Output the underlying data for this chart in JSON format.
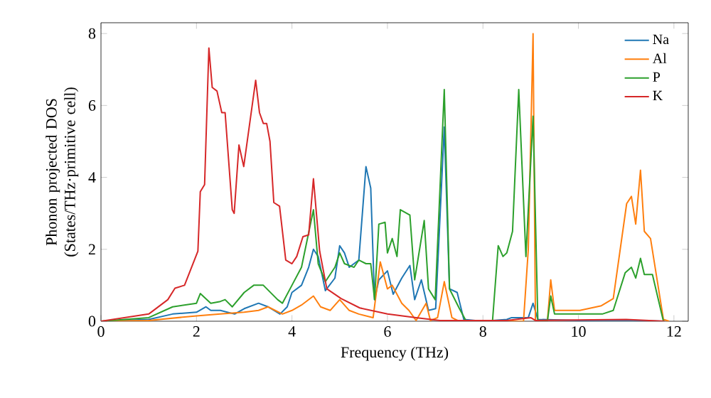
{
  "chart_data": {
    "type": "line",
    "xlabel": "Frequency (THz)",
    "ylabel": "Phonon projected DOS (States/THz·primitive cell)",
    "xlim": [
      0,
      12.3
    ],
    "ylim": [
      0,
      8.3
    ],
    "xticks": [
      0,
      2,
      4,
      6,
      8,
      10,
      12
    ],
    "yticks": [
      0,
      2,
      4,
      6,
      8
    ],
    "legend": "top right",
    "grid": false,
    "series": [
      {
        "name": "Na",
        "color": "#1f77b4",
        "x": [
          0,
          1,
          1.5,
          2,
          2.2,
          2.3,
          2.5,
          2.8,
          3.0,
          3.3,
          3.5,
          3.75,
          3.9,
          4.0,
          4.2,
          4.35,
          4.45,
          4.55,
          4.7,
          4.9,
          5.0,
          5.1,
          5.2,
          5.3,
          5.4,
          5.55,
          5.65,
          5.73,
          5.82,
          6.0,
          6.12,
          6.3,
          6.47,
          6.57,
          6.71,
          6.86,
          7.01,
          7.19,
          7.3,
          7.46,
          7.6,
          8.0,
          8.5,
          8.6,
          8.95,
          9.05,
          9.15,
          10,
          11,
          11.8
        ],
        "values": [
          0,
          0.05,
          0.2,
          0.25,
          0.4,
          0.3,
          0.3,
          0.2,
          0.35,
          0.5,
          0.4,
          0.2,
          0.4,
          0.8,
          1.0,
          1.5,
          2.0,
          1.8,
          0.85,
          1.2,
          2.1,
          1.9,
          1.5,
          1.6,
          1.7,
          4.3,
          3.7,
          0.6,
          1.15,
          1.4,
          0.75,
          1.2,
          1.55,
          0.6,
          1.15,
          0.3,
          0.35,
          5.4,
          0.9,
          0.8,
          0.05,
          0,
          0.05,
          0.1,
          0.1,
          0.5,
          0.05,
          0.02,
          0.03,
          0
        ]
      },
      {
        "name": "Al",
        "color": "#ff7f0e",
        "x": [
          0,
          1,
          2,
          2.5,
          3.0,
          3.3,
          3.5,
          3.8,
          4.0,
          4.2,
          4.45,
          4.6,
          4.8,
          5.0,
          5.2,
          5.4,
          5.7,
          5.85,
          6.0,
          6.1,
          6.3,
          6.45,
          6.6,
          6.81,
          6.9,
          7.05,
          7.19,
          7.35,
          7.5,
          8.85,
          8.95,
          9.05,
          9.1,
          9.35,
          9.42,
          9.5,
          10.03,
          10.48,
          10.73,
          11.01,
          11.11,
          11.2,
          11.3,
          11.38,
          11.51,
          11.78,
          11.9
        ],
        "values": [
          0,
          0.02,
          0.15,
          0.2,
          0.25,
          0.3,
          0.4,
          0.2,
          0.3,
          0.45,
          0.7,
          0.4,
          0.3,
          0.6,
          0.3,
          0.2,
          0.1,
          1.65,
          0.9,
          1.0,
          0.5,
          0.3,
          0.02,
          0.5,
          0.02,
          0.1,
          1.1,
          0.1,
          0,
          0,
          2.0,
          8.0,
          0,
          0,
          1.15,
          0.3,
          0.3,
          0.43,
          0.63,
          3.27,
          3.47,
          2.7,
          4.2,
          2.5,
          2.3,
          0.05,
          0
        ]
      },
      {
        "name": "P",
        "color": "#2ca02c",
        "x": [
          0,
          1,
          1.5,
          2.0,
          2.08,
          2.3,
          2.5,
          2.6,
          2.75,
          3.0,
          3.2,
          3.4,
          3.7,
          3.8,
          4.0,
          4.2,
          4.45,
          4.55,
          4.7,
          4.9,
          5.0,
          5.1,
          5.3,
          5.4,
          5.55,
          5.65,
          5.73,
          5.82,
          5.95,
          6.0,
          6.1,
          6.2,
          6.27,
          6.47,
          6.57,
          6.77,
          6.86,
          7.0,
          7.19,
          7.3,
          7.5,
          7.65,
          8.2,
          8.32,
          8.42,
          8.5,
          8.62,
          8.75,
          8.9,
          9.05,
          9.15,
          9.35,
          9.42,
          9.5,
          10.5,
          10.73,
          10.98,
          11.11,
          11.2,
          11.3,
          11.38,
          11.55,
          11.78
        ],
        "values": [
          0,
          0.1,
          0.4,
          0.5,
          0.77,
          0.5,
          0.55,
          0.6,
          0.4,
          0.8,
          1.0,
          1.0,
          0.6,
          0.5,
          1.0,
          1.5,
          3.1,
          1.6,
          1.1,
          1.5,
          1.9,
          1.6,
          1.5,
          1.7,
          1.6,
          1.6,
          0.6,
          2.7,
          2.75,
          1.9,
          2.3,
          1.8,
          3.1,
          2.95,
          1.15,
          2.8,
          0.9,
          0.6,
          6.44,
          0.9,
          0.37,
          0,
          0,
          2.1,
          1.8,
          1.9,
          2.5,
          6.44,
          1.8,
          5.7,
          0,
          0,
          0.7,
          0.2,
          0.2,
          0.3,
          1.35,
          1.5,
          1.2,
          1.75,
          1.3,
          1.3,
          0
        ]
      },
      {
        "name": "K",
        "color": "#d62728",
        "x": [
          0,
          1.0,
          1.4,
          1.55,
          1.75,
          2.03,
          2.08,
          2.17,
          2.26,
          2.33,
          2.43,
          2.53,
          2.6,
          2.75,
          2.79,
          2.89,
          2.99,
          3.24,
          3.32,
          3.4,
          3.47,
          3.54,
          3.62,
          3.74,
          3.87,
          4.0,
          4.1,
          4.23,
          4.35,
          4.45,
          4.58,
          4.73,
          5.03,
          5.42,
          6.0,
          6.6,
          7.1,
          8.5,
          9.0,
          9.1,
          11,
          11.8
        ],
        "values": [
          0,
          0.2,
          0.6,
          0.92,
          1.0,
          1.95,
          3.6,
          3.8,
          7.6,
          6.5,
          6.4,
          5.8,
          5.8,
          3.1,
          3.0,
          4.9,
          4.3,
          6.7,
          5.8,
          5.5,
          5.5,
          5.0,
          3.3,
          3.2,
          1.7,
          1.6,
          1.8,
          2.35,
          2.4,
          3.96,
          1.95,
          0.9,
          0.63,
          0.37,
          0.2,
          0.1,
          0.02,
          0.02,
          0.1,
          0.02,
          0.05,
          0
        ]
      }
    ]
  }
}
